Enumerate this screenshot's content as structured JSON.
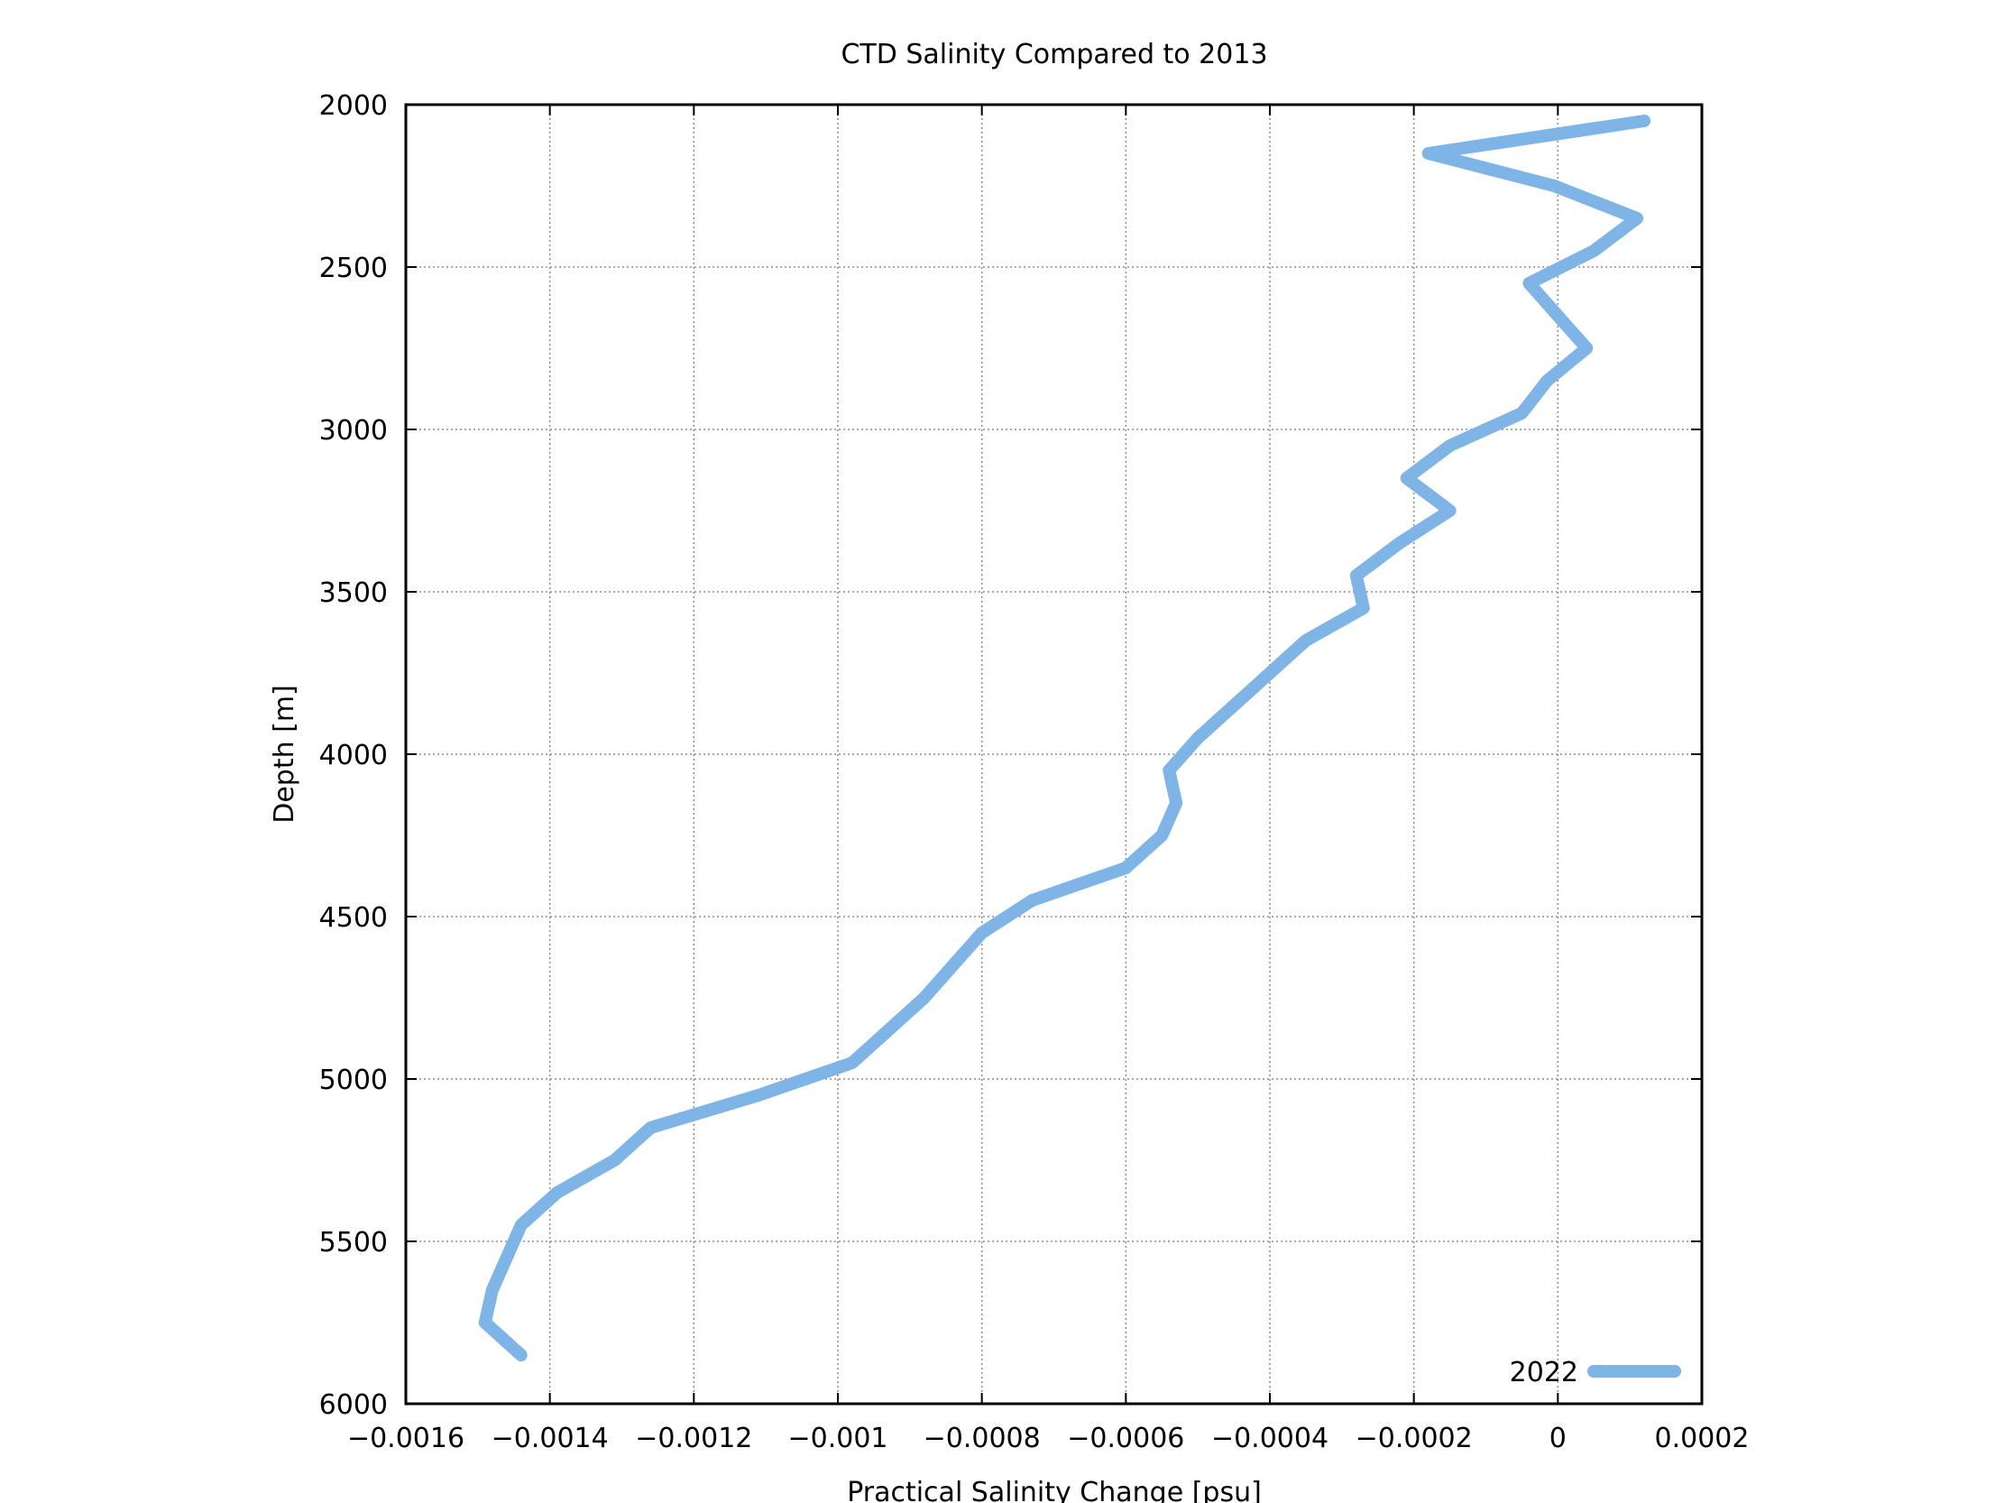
{
  "chart_data": {
    "type": "line",
    "title": "CTD Salinity Compared to 2013",
    "xlabel": "Practical Salinity Change [psu]",
    "ylabel": "Depth [m]",
    "xlim": [
      -0.0016,
      0.0002
    ],
    "ylim": [
      2000,
      6000
    ],
    "y_inverted": true,
    "grid": true,
    "legend_position": "bottom-right",
    "x_ticks": [
      -0.0016,
      -0.0014,
      -0.0012,
      -0.001,
      -0.0008,
      -0.0006,
      -0.0004,
      -0.0002,
      0,
      0.0002
    ],
    "x_tick_labels": [
      "−0.0016",
      "−0.0014",
      "−0.0012",
      "−0.001",
      "−0.0008",
      "−0.0006",
      "−0.0004",
      "−0.0002",
      "0",
      "0.0002"
    ],
    "y_ticks": [
      2000,
      2500,
      3000,
      3500,
      4000,
      4500,
      5000,
      5500,
      6000
    ],
    "y_tick_labels": [
      "2000",
      "2500",
      "3000",
      "3500",
      "4000",
      "4500",
      "5000",
      "5500",
      "6000"
    ],
    "series": [
      {
        "name": "2022",
        "color": "#7eb4e6",
        "x": [
          0.00012,
          -0.00018,
          -5e-06,
          0.00011,
          5e-05,
          -4e-05,
          0.0,
          4e-05,
          -1.5e-05,
          -5e-05,
          -0.00015,
          -0.00021,
          -0.00015,
          -0.00022,
          -0.00028,
          -0.00027,
          -0.00035,
          -0.0004,
          -0.00045,
          -0.0005,
          -0.00054,
          -0.00053,
          -0.00055,
          -0.0006,
          -0.00073,
          -0.0008,
          -0.00084,
          -0.00088,
          -0.00093,
          -0.00098,
          -0.00111,
          -0.00126,
          -0.00131,
          -0.00139,
          -0.00144,
          -0.00146,
          -0.00148,
          -0.00149,
          -0.00144
        ],
        "y": [
          2050,
          2150,
          2250,
          2350,
          2450,
          2550,
          2650,
          2750,
          2850,
          2950,
          3050,
          3150,
          3250,
          3350,
          3450,
          3550,
          3650,
          3750,
          3850,
          3950,
          4050,
          4150,
          4250,
          4350,
          4450,
          4550,
          4650,
          4750,
          4850,
          4950,
          5050,
          5150,
          5250,
          5350,
          5450,
          5550,
          5650,
          5750,
          5850
        ]
      }
    ]
  }
}
